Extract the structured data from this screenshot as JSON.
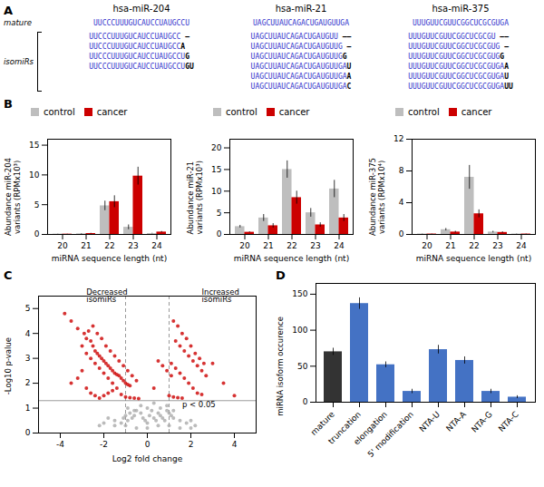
{
  "chart_data": [
    {
      "type": "sequences",
      "title": "A",
      "row_labels": [
        "mature",
        "isomiRs"
      ],
      "series": [
        {
          "name": "hsa-miR-204",
          "mature": "UUCCCUUUGUCAUCCUAUGCCU",
          "isomirs": [
            {
              "sequence": "UUCCCUUUGUCAUCCUAUGCC",
              "extra": " –"
            },
            {
              "sequence": "UUCCCUUUGUCAUCCUAUGCC",
              "extra": "A"
            },
            {
              "sequence": "UUCCCUUUGUCAUCCUAUGCCU",
              "extra": "G"
            },
            {
              "sequence": "UUCCCUUUGUCAUCCUAUGCCU",
              "extra": "GU"
            }
          ]
        },
        {
          "name": "hsa-miR-21",
          "mature": "UAGCUUAUCAGACUGAUGUUGA",
          "isomirs": [
            {
              "sequence": "UAGCUUAUCAGACUGAUGUU",
              "extra": " ––"
            },
            {
              "sequence": "UAGCUUAUCAGACUGAUGUUG",
              "extra": " –"
            },
            {
              "sequence": "UAGCUUAUCAGACUGAUGUUG",
              "extra": "G"
            },
            {
              "sequence": "UAGCUUAUCAGACUGAUGUUGA",
              "extra": "U"
            },
            {
              "sequence": "UAGCUUAUCAGACUGAUGUUGA",
              "extra": "A"
            },
            {
              "sequence": "UAGCUUAUCAGACUGAUGUUGA",
              "extra": "C"
            }
          ]
        },
        {
          "name": "hsa-miR-375",
          "mature": "UUUGUUCGUUCGGCUCGCGUGA",
          "isomirs": [
            {
              "sequence": "UUUGUUCGUUCGGCUCGCGU",
              "extra": " ––"
            },
            {
              "sequence": "UUUGUUCGUUCGGCUCGCGUG",
              "extra": " –"
            },
            {
              "sequence": "UUUGUUCGUUCGGCUCGCGUG",
              "extra": "G"
            },
            {
              "sequence": "UUUGUUCGUUCGGCUCGCGUGA",
              "extra": "A"
            },
            {
              "sequence": "UUUGUUCGUUCGGCUCGCGUGA",
              "extra": "U"
            },
            {
              "sequence": "UUUGUUCGUUCGGCUCGCGUGA",
              "extra": "UU"
            }
          ]
        }
      ]
    },
    {
      "type": "bar",
      "title": "B",
      "categories": [
        20,
        21,
        22,
        23,
        24
      ],
      "xlabel": "miRNA sequence length (nt)",
      "ylabel": "Abundance miR-204\nvariants (RPMx10³)",
      "ylim": [
        0,
        16
      ],
      "yticks": [
        0,
        5,
        10,
        15
      ],
      "legend": "upper left",
      "series": [
        {
          "name": "control",
          "color": "#bebebe",
          "values": [
            0.05,
            0.1,
            4.8,
            1.2,
            0.15
          ],
          "errors": [
            0.02,
            0.05,
            0.8,
            0.4,
            0.05
          ]
        },
        {
          "name": "cancer",
          "color": "#cc0000",
          "values": [
            0.05,
            0.15,
            5.5,
            9.8,
            0.4
          ],
          "errors": [
            0.02,
            0.05,
            1.0,
            1.5,
            0.1
          ]
        }
      ]
    },
    {
      "type": "bar",
      "categories": [
        20,
        21,
        22,
        23,
        24
      ],
      "xlabel": "miRNA sequence length (nt)",
      "ylabel": "Abundance miR-21\nvariants (RPMx10³)",
      "ylim": [
        0,
        22
      ],
      "yticks": [
        0,
        5,
        10,
        15,
        20
      ],
      "legend": "upper left",
      "series": [
        {
          "name": "control",
          "color": "#bebebe",
          "values": [
            1.8,
            3.8,
            15.0,
            5.0,
            10.5
          ],
          "errors": [
            0.3,
            0.8,
            2.0,
            1.0,
            2.0
          ]
        },
        {
          "name": "cancer",
          "color": "#cc0000",
          "values": [
            0.5,
            2.0,
            8.5,
            2.2,
            3.8
          ],
          "errors": [
            0.1,
            0.5,
            1.5,
            0.5,
            0.8
          ]
        }
      ]
    },
    {
      "type": "bar",
      "categories": [
        20,
        21,
        22,
        23,
        24
      ],
      "xlabel": "miRNA sequence length (nt)",
      "ylabel": "Abundance miR-375\nvariants (RPMx10⁴)",
      "ylim": [
        0,
        12
      ],
      "yticks": [
        0,
        4,
        8,
        12
      ],
      "legend": "upper left",
      "series": [
        {
          "name": "control",
          "color": "#bebebe",
          "values": [
            0.05,
            0.6,
            7.2,
            0.3,
            0.05
          ],
          "errors": [
            0.02,
            0.15,
            1.5,
            0.1,
            0.02
          ]
        },
        {
          "name": "cancer",
          "color": "#cc0000",
          "values": [
            0.05,
            0.3,
            2.6,
            0.25,
            0.05
          ],
          "errors": [
            0.02,
            0.1,
            0.5,
            0.08,
            0.02
          ]
        }
      ]
    },
    {
      "type": "scatter",
      "title": "C",
      "xlabel": "Log2 fold change",
      "ylabel": "-Log10 p-value",
      "xlim": [
        -5,
        5
      ],
      "xticks": [
        -4,
        -2,
        0,
        2,
        4
      ],
      "ylim": [
        0,
        5.5
      ],
      "yticks": [
        0,
        1,
        2,
        3,
        4,
        5
      ],
      "series": [
        {
          "color": "#aaaaaa",
          "x": [
            -0.3,
            -0.2,
            -0.1,
            0.0,
            0.1,
            0.2,
            0.3,
            0.4,
            0.5,
            0.6,
            0.7,
            0.8,
            -0.5,
            -0.6,
            -0.7,
            -0.8,
            -0.9,
            -1.0,
            -1.1,
            -1.2,
            0.9,
            1.0,
            1.1,
            1.2,
            -1.5,
            -1.8,
            -2.0,
            -2.2,
            1.5,
            1.8,
            2.0,
            2.2,
            0.0,
            0.3,
            -0.3,
            0.6,
            -0.6,
            0.9,
            -0.9,
            1.2,
            0.0,
            0.5,
            -0.5,
            1.0,
            -1.0,
            1.5,
            -1.5,
            2.0
          ],
          "values": [
            0.8,
            0.6,
            0.5,
            0.4,
            0.7,
            0.9,
            0.6,
            0.5,
            0.8,
            0.7,
            0.6,
            0.5,
            0.9,
            0.7,
            0.6,
            0.8,
            0.5,
            0.7,
            0.6,
            0.4,
            0.9,
            0.8,
            0.7,
            0.6,
            0.5,
            0.6,
            0.4,
            0.3,
            0.5,
            0.4,
            0.5,
            0.3,
            1.0,
            1.2,
            1.1,
            1.0,
            0.9,
            1.1,
            1.0,
            0.9,
            0.2,
            0.3,
            0.2,
            0.3,
            0.3,
            0.2,
            0.3,
            0.2
          ]
        },
        {
          "color": "#cc0000",
          "x": [
            -3.8,
            -3.5,
            -3.2,
            -2.9,
            -2.8,
            -2.6,
            -2.5,
            -2.4,
            -2.3,
            -2.2,
            -2.1,
            -2.0,
            -1.9,
            -1.8,
            -1.7,
            -1.6,
            -1.5,
            -1.4,
            -1.3,
            -1.2,
            -1.1,
            -1.0,
            -0.9,
            -0.8,
            -2.7,
            -2.5,
            -2.3,
            -2.1,
            -1.9,
            -1.7,
            -1.5,
            -1.3,
            -1.1,
            -0.9,
            -0.7,
            -0.5,
            -3.0,
            -2.8,
            -2.6,
            -2.4,
            -2.2,
            -2.0,
            -1.8,
            -1.6,
            -3.5,
            -3.2,
            -3.0,
            -2.8,
            -2.6,
            -2.4,
            -2.2,
            -2.0,
            -1.8,
            -1.6,
            -1.4,
            -1.2,
            -1.0,
            -0.8,
            -0.6,
            -0.4,
            1.2,
            1.4,
            1.6,
            1.8,
            2.0,
            2.2,
            2.4,
            2.6,
            1.3,
            1.5,
            1.7,
            1.9,
            2.1,
            2.3,
            2.5,
            2.7,
            1.1,
            1.3,
            1.5,
            1.7,
            1.9,
            2.1,
            2.3,
            2.5,
            1.0,
            1.2,
            1.4,
            1.6,
            0.5,
            0.7,
            0.9,
            1.1,
            3.0,
            3.5,
            4.0,
            0.3
          ],
          "values": [
            4.8,
            4.5,
            4.2,
            4.0,
            3.8,
            3.7,
            3.5,
            3.3,
            3.2,
            3.1,
            3.0,
            2.9,
            2.8,
            2.7,
            2.6,
            2.5,
            2.4,
            2.35,
            2.3,
            2.2,
            2.1,
            2.0,
            1.95,
            1.9,
            4.1,
            4.3,
            4.0,
            3.8,
            3.5,
            3.3,
            3.1,
            2.9,
            2.7,
            2.5,
            2.3,
            2.1,
            3.5,
            3.2,
            3.0,
            2.8,
            2.6,
            2.4,
            2.2,
            2.0,
            2.0,
            2.2,
            2.5,
            1.8,
            1.6,
            1.5,
            1.4,
            1.5,
            1.6,
            1.7,
            1.8,
            1.55,
            1.45,
            1.42,
            1.4,
            1.38,
            4.5,
            4.3,
            4.0,
            3.8,
            3.5,
            3.2,
            3.0,
            2.8,
            3.7,
            3.5,
            3.3,
            3.1,
            2.9,
            2.7,
            2.5,
            2.3,
            2.8,
            2.6,
            2.4,
            2.2,
            2.0,
            1.8,
            1.6,
            1.55,
            1.5,
            1.45,
            1.42,
            1.4,
            2.9,
            2.7,
            2.5,
            2.3,
            2.8,
            2.0,
            1.5,
            1.8
          ]
        }
      ],
      "reference_lines": [
        {
          "axis": "y",
          "value": 1.301,
          "color": "gray",
          "line_style": "solid"
        },
        {
          "axis": "x",
          "value": -1.0,
          "color": "gray",
          "line_style": "dashed"
        },
        {
          "axis": "x",
          "value": 1.0,
          "color": "gray",
          "line_style": "dashed"
        }
      ],
      "annotations": [
        {
          "text": "Decreased\nisomiRs",
          "x": -2.8,
          "y": 5.25
        },
        {
          "text": "Increased\nisomiRs",
          "x": 2.5,
          "y": 5.25
        },
        {
          "text": "p < 0.05",
          "x": 1.6,
          "y": 1.021
        }
      ]
    },
    {
      "type": "bar",
      "title": "D",
      "categories": [
        "mature",
        "truncation",
        "elongation",
        "5' modification",
        "NTA-U",
        "NTA-A",
        "NTA-G",
        "NTA-C"
      ],
      "values": [
        70,
        137,
        52,
        15,
        73,
        58,
        15,
        7
      ],
      "errors": [
        5,
        8,
        4,
        3,
        6,
        5,
        3,
        2
      ],
      "colors": [
        "#333333",
        "#4472c4",
        "#4472c4",
        "#4472c4",
        "#4472c4",
        "#4472c4",
        "#4472c4",
        "#4472c4"
      ],
      "ylabel": "miRNA isoform occurence",
      "ylim": [
        0,
        165
      ],
      "yticks": [
        0,
        50,
        100,
        150
      ]
    }
  ]
}
